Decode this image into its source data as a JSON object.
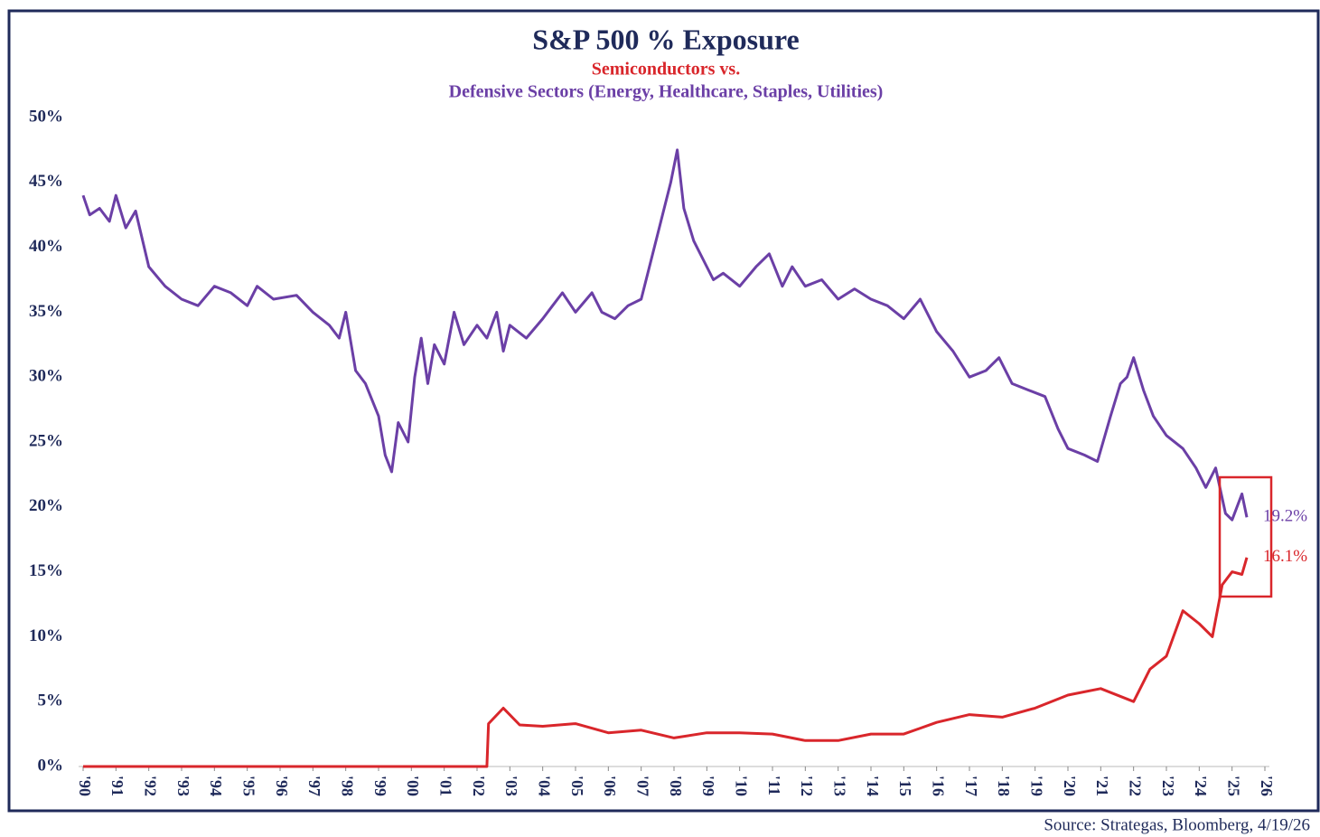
{
  "chart_data": {
    "type": "line",
    "title": "S&P 500 % Exposure",
    "subtitle": "Semiconductors vs.",
    "subtitle2": "Defensive Sectors (Energy, Healthcare, Staples, Utilities)",
    "source": "Source: Strategas, Bloomberg, 4/19/26",
    "xlim": [
      1990,
      2026
    ],
    "ylim": [
      0,
      50
    ],
    "yticks": [
      {
        "value": 0,
        "label": "0%"
      },
      {
        "value": 5,
        "label": "5%"
      },
      {
        "value": 10,
        "label": "10%"
      },
      {
        "value": 15,
        "label": "15%"
      },
      {
        "value": 20,
        "label": "20%"
      },
      {
        "value": 25,
        "label": "25%"
      },
      {
        "value": 30,
        "label": "30%"
      },
      {
        "value": 35,
        "label": "35%"
      },
      {
        "value": 40,
        "label": "40%"
      },
      {
        "value": 45,
        "label": "45%"
      },
      {
        "value": 50,
        "label": "50%"
      }
    ],
    "xticks": [
      {
        "value": 1990,
        "label": "'90"
      },
      {
        "value": 1991,
        "label": "'91"
      },
      {
        "value": 1992,
        "label": "'92"
      },
      {
        "value": 1993,
        "label": "'93"
      },
      {
        "value": 1994,
        "label": "'94"
      },
      {
        "value": 1995,
        "label": "'95"
      },
      {
        "value": 1996,
        "label": "'96"
      },
      {
        "value": 1997,
        "label": "'97"
      },
      {
        "value": 1998,
        "label": "'98"
      },
      {
        "value": 1999,
        "label": "'99"
      },
      {
        "value": 2000,
        "label": "'00"
      },
      {
        "value": 2001,
        "label": "'01"
      },
      {
        "value": 2002,
        "label": "'02"
      },
      {
        "value": 2003,
        "label": "'03"
      },
      {
        "value": 2004,
        "label": "'04"
      },
      {
        "value": 2005,
        "label": "'05"
      },
      {
        "value": 2006,
        "label": "'06"
      },
      {
        "value": 2007,
        "label": "'07"
      },
      {
        "value": 2008,
        "label": "'08"
      },
      {
        "value": 2009,
        "label": "'09"
      },
      {
        "value": 2010,
        "label": "'10"
      },
      {
        "value": 2011,
        "label": "'11"
      },
      {
        "value": 2012,
        "label": "'12"
      },
      {
        "value": 2013,
        "label": "'13"
      },
      {
        "value": 2014,
        "label": "'14"
      },
      {
        "value": 2015,
        "label": "'15"
      },
      {
        "value": 2016,
        "label": "'16"
      },
      {
        "value": 2017,
        "label": "'17"
      },
      {
        "value": 2018,
        "label": "'18"
      },
      {
        "value": 2019,
        "label": "'19"
      },
      {
        "value": 2020,
        "label": "'20"
      },
      {
        "value": 2021,
        "label": "'21"
      },
      {
        "value": 2022,
        "label": "'22"
      },
      {
        "value": 2023,
        "label": "'23"
      },
      {
        "value": 2024,
        "label": "'24"
      },
      {
        "value": 2025,
        "label": "'25"
      },
      {
        "value": 2026,
        "label": "'26"
      }
    ],
    "grid": false,
    "series": [
      {
        "color": "#6b3fa6",
        "end_label": "19.2%",
        "x": [
          1990.0,
          1990.2,
          1990.5,
          1990.8,
          1991.0,
          1991.3,
          1991.6,
          1992.0,
          1992.5,
          1993.0,
          1993.5,
          1994.0,
          1994.5,
          1995.0,
          1995.3,
          1995.8,
          1996.5,
          1997.0,
          1997.5,
          1997.8,
          1998.0,
          1998.3,
          1998.6,
          1999.0,
          1999.2,
          1999.4,
          1999.6,
          1999.9,
          2000.1,
          2000.3,
          2000.5,
          2000.7,
          2001.0,
          2001.3,
          2001.6,
          2002.0,
          2002.3,
          2002.6,
          2002.8,
          2003.0,
          2003.5,
          2004.0,
          2004.3,
          2004.6,
          2005.0,
          2005.5,
          2005.8,
          2006.2,
          2006.6,
          2007.0,
          2007.3,
          2007.6,
          2007.9,
          2008.1,
          2008.3,
          2008.6,
          2008.9,
          2009.2,
          2009.5,
          2010.0,
          2010.5,
          2010.9,
          2011.3,
          2011.6,
          2012.0,
          2012.5,
          2013.0,
          2013.5,
          2014.0,
          2014.5,
          2015.0,
          2015.5,
          2016.0,
          2016.5,
          2017.0,
          2017.5,
          2017.9,
          2018.3,
          2018.8,
          2019.3,
          2019.7,
          2020.0,
          2020.5,
          2020.9,
          2021.3,
          2021.6,
          2021.8,
          2022.0,
          2022.3,
          2022.6,
          2023.0,
          2023.5,
          2023.9,
          2024.2,
          2024.5,
          2024.8,
          2025.0,
          2025.3,
          2025.45
        ],
        "values": [
          44,
          42.5,
          43,
          42,
          44,
          41.5,
          42.8,
          38.5,
          37,
          36,
          35.5,
          37,
          36.5,
          35.5,
          37,
          36,
          36.3,
          35,
          34,
          33,
          35,
          30.5,
          29.5,
          27,
          24,
          22.7,
          26.5,
          25,
          30,
          33,
          29.5,
          32.5,
          31,
          35,
          32.5,
          34,
          33,
          35,
          32,
          34,
          33,
          34.5,
          35.5,
          36.5,
          35,
          36.5,
          35,
          34.5,
          35.5,
          36,
          39,
          42,
          45,
          47.5,
          43,
          40.5,
          39,
          37.5,
          38,
          37,
          38.5,
          39.5,
          37,
          38.5,
          37,
          37.5,
          36,
          36.8,
          36,
          35.5,
          34.5,
          36,
          33.5,
          32,
          30,
          30.5,
          31.5,
          29.5,
          29,
          28.5,
          26,
          24.5,
          24,
          23.5,
          27,
          29.5,
          30,
          31.5,
          29,
          27,
          25.5,
          24.5,
          23,
          21.5,
          23,
          19.5,
          19,
          21,
          19.2
        ]
      },
      {
        "color": "#d9262b",
        "end_label": "16.1%",
        "x": [
          1990.0,
          2002.3,
          2002.35,
          2002.8,
          2003.3,
          2004.0,
          2005.0,
          2006.0,
          2007.0,
          2008.0,
          2009.0,
          2010.0,
          2011.0,
          2012.0,
          2013.0,
          2014.0,
          2015.0,
          2016.0,
          2017.0,
          2018.0,
          2019.0,
          2020.0,
          2021.0,
          2022.0,
          2022.5,
          2023.0,
          2023.5,
          2024.0,
          2024.4,
          2024.7,
          2025.0,
          2025.3,
          2025.45
        ],
        "values": [
          0,
          0,
          3.3,
          4.5,
          3.2,
          3.1,
          3.3,
          2.6,
          2.8,
          2.2,
          2.6,
          2.6,
          2.5,
          2.0,
          2.0,
          2.5,
          2.5,
          3.4,
          4.0,
          3.8,
          4.5,
          5.5,
          6.0,
          5.0,
          7.5,
          8.5,
          12,
          11,
          10,
          14,
          15,
          14.8,
          16.1
        ]
      }
    ]
  }
}
